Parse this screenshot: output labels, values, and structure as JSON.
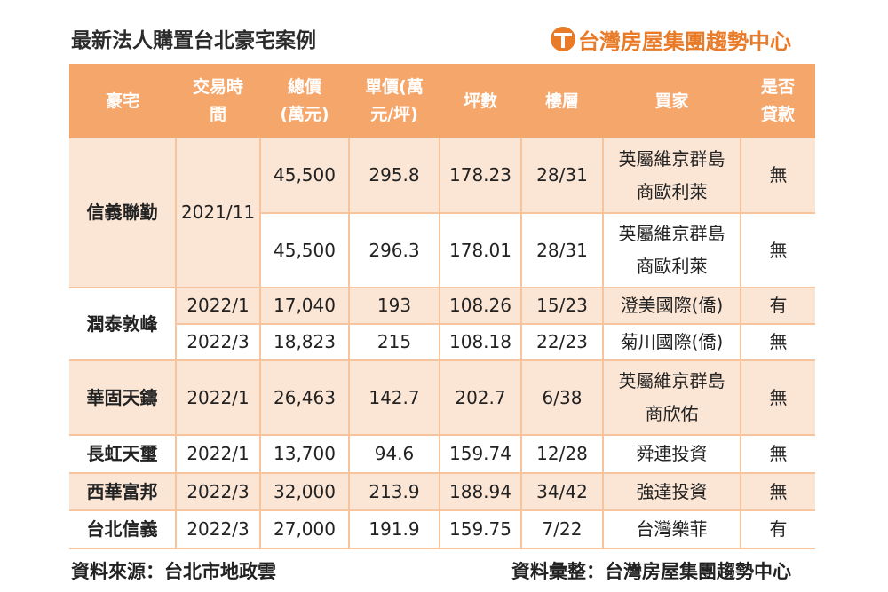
{
  "title": "最新法人購置台北豪宅案例",
  "brand": "台灣房屋集團趨勢中心",
  "headers": {
    "house": "豪宅",
    "date": [
      "交易時",
      "間"
    ],
    "total": [
      "總價",
      "(萬元)"
    ],
    "unit": [
      "單價(萬",
      "元/坪)"
    ],
    "area": "坪數",
    "floor": "樓層",
    "buyer": "買家",
    "loan": [
      "是否",
      "貸款"
    ]
  },
  "rows": [
    {
      "house": "信義聯勤",
      "date": "2021/11",
      "total": "45,500",
      "unit": "295.8",
      "area": "178.23",
      "floor": "28/31",
      "buyer": [
        "英屬維京群島",
        "商歐利萊"
      ],
      "loan": "無"
    },
    {
      "total": "45,500",
      "unit": "296.3",
      "area": "178.01",
      "floor": "28/31",
      "buyer": [
        "英屬維京群島",
        "商歐利萊"
      ],
      "loan": "無"
    },
    {
      "house": "潤泰敦峰",
      "date": "2022/1",
      "total": "17,040",
      "unit": "193",
      "area": "108.26",
      "floor": "15/23",
      "buyer": "澄美國際(僑)",
      "loan": "有"
    },
    {
      "date": "2022/3",
      "total": "18,823",
      "unit": "215",
      "area": "108.18",
      "floor": "22/23",
      "buyer": "菊川國際(僑)",
      "loan": "無"
    },
    {
      "house": "華固天鑄",
      "date": "2022/1",
      "total": "26,463",
      "unit": "142.7",
      "area": "202.7",
      "floor": "6/38",
      "buyer": [
        "英屬維京群島",
        "商欣佑"
      ],
      "loan": "無"
    },
    {
      "house": "長虹天璽",
      "date": "2022/1",
      "total": "13,700",
      "unit": "94.6",
      "area": "159.74",
      "floor": "12/28",
      "buyer": "舜連投資",
      "loan": "無"
    },
    {
      "house": "西華富邦",
      "date": "2022/3",
      "total": "32,000",
      "unit": "213.9",
      "area": "188.94",
      "floor": "34/42",
      "buyer": "強達投資",
      "loan": "無"
    },
    {
      "house": "台北信義",
      "date": "2022/3",
      "total": "27,000",
      "unit": "191.9",
      "area": "159.75",
      "floor": "7/22",
      "buyer": "台灣樂菲",
      "loan": "有"
    }
  ],
  "footer": {
    "source": "資料來源：台北市地政雲",
    "compiled": "資料彙整：台灣房屋集團趨勢中心"
  },
  "colors": {
    "header_bg": "#f5a66b",
    "row_tint": "#fbe6d6",
    "brand": "#e87a28"
  }
}
